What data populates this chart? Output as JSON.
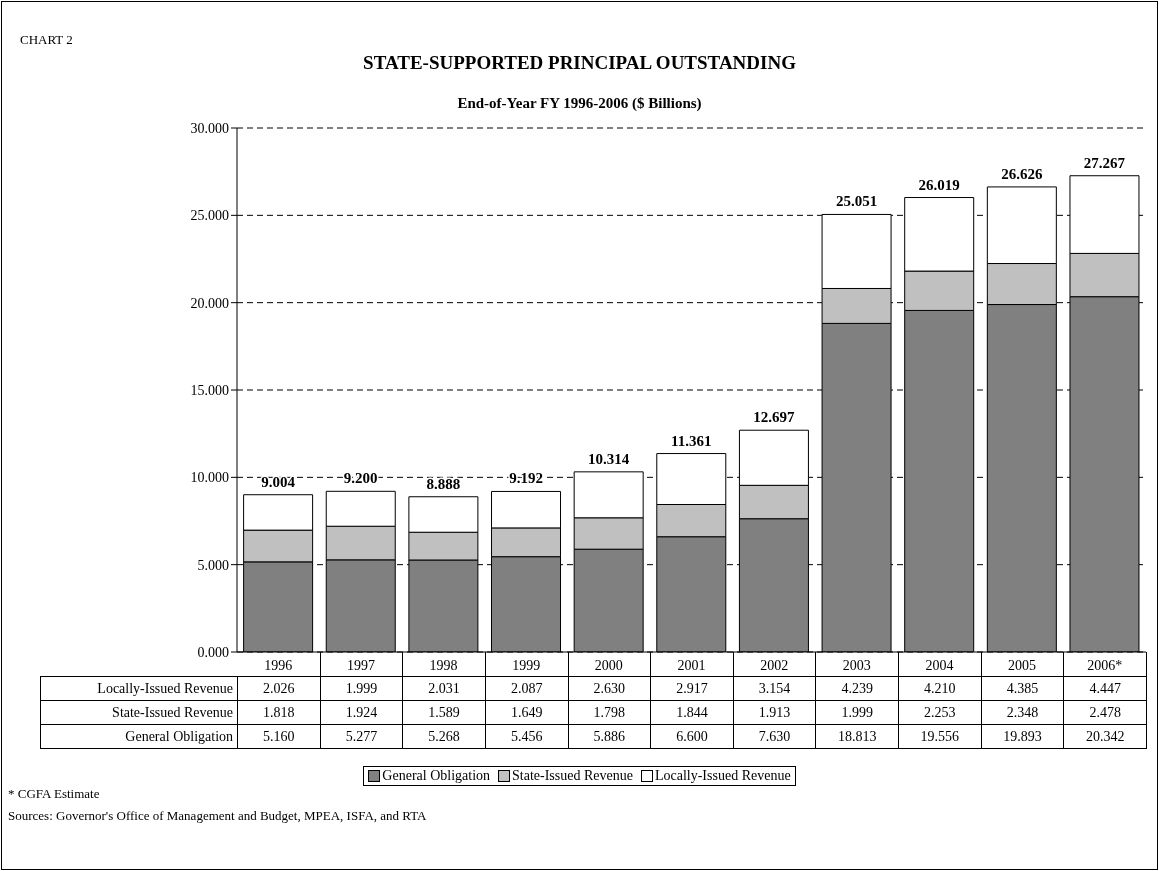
{
  "chart_data": {
    "type": "bar",
    "title": "STATE-SUPPORTED PRINCIPAL OUTSTANDING",
    "subtitle": "End-of-Year FY 1996-2006  ($ Billions)",
    "categories": [
      "1996",
      "1997",
      "1998",
      "1999",
      "2000",
      "2001",
      "2002",
      "2003",
      "2004",
      "2005",
      "2006*"
    ],
    "stacked": true,
    "series": [
      {
        "name": "General Obligation",
        "color": "#808080",
        "values": [
          5.16,
          5.277,
          5.268,
          5.456,
          5.886,
          6.6,
          7.63,
          18.813,
          19.556,
          19.893,
          20.342
        ],
        "value_labels": [
          "5.160",
          "5.277",
          "5.268",
          "5.456",
          "5.886",
          "6.600",
          "7.630",
          "18.813",
          "19.556",
          "19.893",
          "20.342"
        ]
      },
      {
        "name": "State-Issued Revenue",
        "color": "#c0c0c0",
        "values": [
          1.818,
          1.924,
          1.589,
          1.649,
          1.798,
          1.844,
          1.913,
          1.999,
          2.253,
          2.348,
          2.478
        ],
        "value_labels": [
          "1.818",
          "1.924",
          "1.589",
          "1.649",
          "1.798",
          "1.844",
          "1.913",
          "1.999",
          "2.253",
          "2.348",
          "2.478"
        ]
      },
      {
        "name": "Locally-Issued Revenue",
        "color": "#ffffff",
        "values": [
          2.026,
          1.999,
          2.031,
          2.087,
          2.63,
          2.917,
          3.154,
          4.239,
          4.21,
          4.385,
          4.447
        ],
        "value_labels": [
          "2.026",
          "1.999",
          "2.031",
          "2.087",
          "2.630",
          "2.917",
          "3.154",
          "4.239",
          "4.210",
          "4.385",
          "4.447"
        ]
      }
    ],
    "totals": [
      "9.004",
      "9.200",
      "8.888",
      "9.192",
      "10.314",
      "11.361",
      "12.697",
      "25.051",
      "26.019",
      "26.626",
      "27.267"
    ],
    "ylim": [
      0,
      30
    ],
    "yticks": [
      {
        "value": 0,
        "label": "0.000"
      },
      {
        "value": 5,
        "label": "5.000"
      },
      {
        "value": 10,
        "label": "10.000"
      },
      {
        "value": 15,
        "label": "15.000"
      },
      {
        "value": 20,
        "label": "20.000"
      },
      {
        "value": 25,
        "label": "25.000"
      },
      {
        "value": 30,
        "label": "30.000"
      }
    ],
    "grid": "y",
    "legend": "bottom",
    "annotations": [
      "CHART 2",
      "* CGFA Estimate",
      "Sources: Governor's Office of Management and Budget, MPEA, ISFA, and RTA"
    ]
  }
}
